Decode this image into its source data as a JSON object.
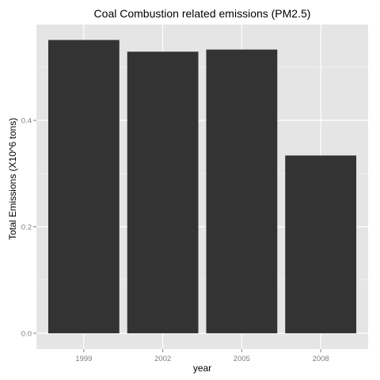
{
  "chart_data": {
    "type": "bar",
    "title": "Coal Combustion related emissions (PM2.5)",
    "xlabel": "year",
    "ylabel": "Total Emissions (X10^6 tons)",
    "categories": [
      "1999",
      "2002",
      "2005",
      "2008"
    ],
    "values": [
      0.551,
      0.529,
      0.533,
      0.334
    ],
    "ylim": [
      0,
      0.58
    ],
    "yticks": [
      0.0,
      0.2,
      0.4
    ],
    "ytick_labels": [
      "0.0",
      "0.2",
      "0.4"
    ],
    "grid": true,
    "legend": "none",
    "colors": {
      "bar": "#333333",
      "panel": "#e5e5e5",
      "grid_major": "#ffffff",
      "grid_minor": "#f2f2f2",
      "tick_text": "#7f7f7f"
    }
  }
}
